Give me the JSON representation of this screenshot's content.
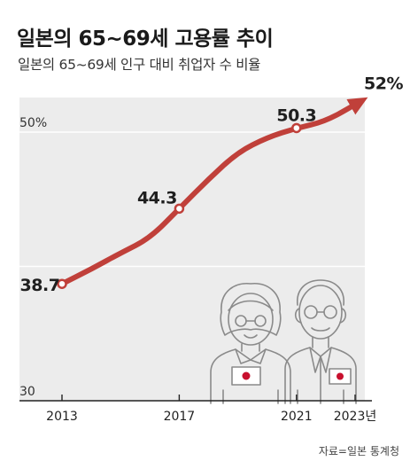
{
  "header": {
    "title": "일본의 65~69세 고용률 추이",
    "subtitle": "일본의 65~69세 인구 대비 취업자 수 비율"
  },
  "footer": {
    "source": "자료=일본 통계청"
  },
  "colors": {
    "line": "#c0403a",
    "plot_bg": "#ececec",
    "grid": "#ffffff",
    "axis": "#222222",
    "illustration_stroke": "#8a8a8a",
    "flag_red": "#c8102e"
  },
  "chart_data": {
    "type": "line",
    "title": "일본의 65~69세 고용률 추이",
    "subtitle": "일본의 65~69세 인구 대비 취업자 수 비율",
    "xlabel": "",
    "ylabel": "",
    "ylim": [
      30,
      52
    ],
    "x_ticks": [
      "2013",
      "2017",
      "2021",
      "2023년"
    ],
    "y_ticks": [
      {
        "value": 50,
        "label": "50%"
      },
      {
        "value": 30,
        "label": "30"
      }
    ],
    "grid": true,
    "series": [
      {
        "x": [
          2013,
          2014,
          2015,
          2016,
          2017,
          2018,
          2019,
          2020,
          2021,
          2022,
          2023
        ],
        "values": [
          38.7,
          39.8,
          41.0,
          42.1,
          44.3,
          46.5,
          48.5,
          49.6,
          50.3,
          50.8,
          52.0
        ]
      }
    ],
    "data_labels": [
      {
        "x": 2013,
        "value": 38.7,
        "text": "38.7"
      },
      {
        "x": 2017,
        "value": 44.3,
        "text": "44.3"
      },
      {
        "x": 2021,
        "value": 50.3,
        "text": "50.3"
      },
      {
        "x": 2023,
        "value": 52.0,
        "text": "52%"
      }
    ]
  }
}
